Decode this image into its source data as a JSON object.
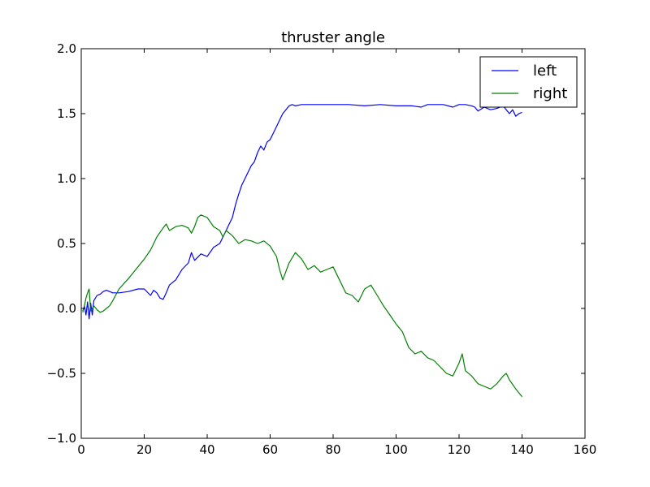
{
  "chart_data": {
    "type": "line",
    "title": "thruster angle",
    "xlabel": "",
    "ylabel": "",
    "xlim": [
      0,
      160
    ],
    "ylim": [
      -1.0,
      2.0
    ],
    "xticks": [
      0,
      20,
      40,
      60,
      80,
      100,
      120,
      140,
      160
    ],
    "xtick_labels": [
      "0",
      "20",
      "40",
      "60",
      "80",
      "100",
      "120",
      "140",
      "160"
    ],
    "yticks": [
      -1.0,
      -0.5,
      0.0,
      0.5,
      1.0,
      1.5,
      2.0
    ],
    "ytick_labels": [
      "−1.0",
      "−0.5",
      "0.0",
      "0.5",
      "1.0",
      "1.5",
      "2.0"
    ],
    "grid": false,
    "legend_position": "top-right",
    "series": [
      {
        "name": "left",
        "color": "#0000ff",
        "x": [
          0.5,
          1.0,
          1.5,
          2.0,
          2.5,
          3.0,
          3.5,
          4.0,
          5.0,
          6.0,
          7.0,
          8.0,
          9.0,
          10.0,
          12.0,
          15.0,
          18.0,
          20.0,
          22.0,
          23.0,
          24.0,
          25.0,
          26.0,
          27.0,
          28.0,
          30.0,
          32.0,
          34.0,
          35.0,
          36.0,
          38.0,
          40.0,
          42.0,
          44.0,
          45.0,
          46.0,
          47.0,
          48.0,
          49.0,
          50.0,
          51.0,
          52.0,
          53.0,
          54.0,
          55.0,
          56.0,
          57.0,
          58.0,
          59.0,
          60.0,
          61.0,
          62.0,
          63.0,
          64.0,
          65.0,
          66.0,
          67.0,
          68.0,
          70.0,
          75.0,
          80.0,
          85.0,
          90.0,
          95.0,
          100.0,
          105.0,
          108.0,
          110.0,
          115.0,
          118.0,
          120.0,
          122.0,
          124.0,
          125.0,
          126.0,
          128.0,
          130.0,
          132.0,
          134.0,
          135.0,
          136.0,
          137.0,
          138.0,
          139.0,
          140.0
        ],
        "y": [
          -0.02,
          0.02,
          -0.05,
          0.05,
          -0.08,
          0.04,
          -0.05,
          0.06,
          0.1,
          0.11,
          0.13,
          0.14,
          0.13,
          0.12,
          0.12,
          0.13,
          0.15,
          0.15,
          0.1,
          0.14,
          0.12,
          0.08,
          0.07,
          0.12,
          0.18,
          0.22,
          0.3,
          0.35,
          0.43,
          0.37,
          0.42,
          0.4,
          0.47,
          0.5,
          0.55,
          0.6,
          0.65,
          0.7,
          0.8,
          0.88,
          0.95,
          1.0,
          1.05,
          1.1,
          1.13,
          1.2,
          1.25,
          1.22,
          1.28,
          1.3,
          1.35,
          1.4,
          1.45,
          1.5,
          1.53,
          1.56,
          1.57,
          1.56,
          1.57,
          1.57,
          1.57,
          1.57,
          1.56,
          1.57,
          1.56,
          1.56,
          1.55,
          1.57,
          1.57,
          1.55,
          1.57,
          1.57,
          1.56,
          1.55,
          1.52,
          1.55,
          1.53,
          1.54,
          1.56,
          1.53,
          1.5,
          1.53,
          1.48,
          1.5,
          1.51
        ]
      },
      {
        "name": "right",
        "color": "#008000",
        "x": [
          0.5,
          1.0,
          1.5,
          2.0,
          2.5,
          3.0,
          3.5,
          4.0,
          5.0,
          6.0,
          7.0,
          8.0,
          9.0,
          10.0,
          12.0,
          15.0,
          18.0,
          20.0,
          22.0,
          24.0,
          26.0,
          27.0,
          28.0,
          30.0,
          32.0,
          34.0,
          35.0,
          36.0,
          37.0,
          38.0,
          40.0,
          42.0,
          44.0,
          45.0,
          46.0,
          48.0,
          50.0,
          52.0,
          54.0,
          56.0,
          58.0,
          60.0,
          62.0,
          63.0,
          64.0,
          66.0,
          68.0,
          70.0,
          72.0,
          74.0,
          76.0,
          78.0,
          80.0,
          82.0,
          84.0,
          86.0,
          88.0,
          90.0,
          92.0,
          94.0,
          96.0,
          98.0,
          100.0,
          102.0,
          104.0,
          106.0,
          108.0,
          110.0,
          112.0,
          114.0,
          116.0,
          118.0,
          120.0,
          121.0,
          122.0,
          124.0,
          126.0,
          128.0,
          130.0,
          132.0,
          134.0,
          135.0,
          136.0,
          138.0,
          140.0
        ],
        "y": [
          -0.03,
          0.02,
          0.08,
          0.12,
          0.15,
          -0.02,
          0.0,
          0.02,
          -0.01,
          -0.03,
          -0.02,
          0.0,
          0.02,
          0.06,
          0.15,
          0.23,
          0.32,
          0.38,
          0.45,
          0.55,
          0.62,
          0.65,
          0.6,
          0.63,
          0.64,
          0.62,
          0.58,
          0.63,
          0.7,
          0.72,
          0.7,
          0.63,
          0.6,
          0.55,
          0.6,
          0.56,
          0.5,
          0.53,
          0.52,
          0.5,
          0.52,
          0.48,
          0.4,
          0.3,
          0.22,
          0.35,
          0.43,
          0.38,
          0.3,
          0.33,
          0.28,
          0.3,
          0.32,
          0.22,
          0.12,
          0.1,
          0.05,
          0.15,
          0.18,
          0.1,
          0.02,
          -0.05,
          -0.12,
          -0.18,
          -0.3,
          -0.35,
          -0.33,
          -0.38,
          -0.4,
          -0.45,
          -0.5,
          -0.52,
          -0.42,
          -0.35,
          -0.48,
          -0.52,
          -0.58,
          -0.6,
          -0.62,
          -0.58,
          -0.52,
          -0.5,
          -0.55,
          -0.62,
          -0.68
        ]
      }
    ]
  }
}
